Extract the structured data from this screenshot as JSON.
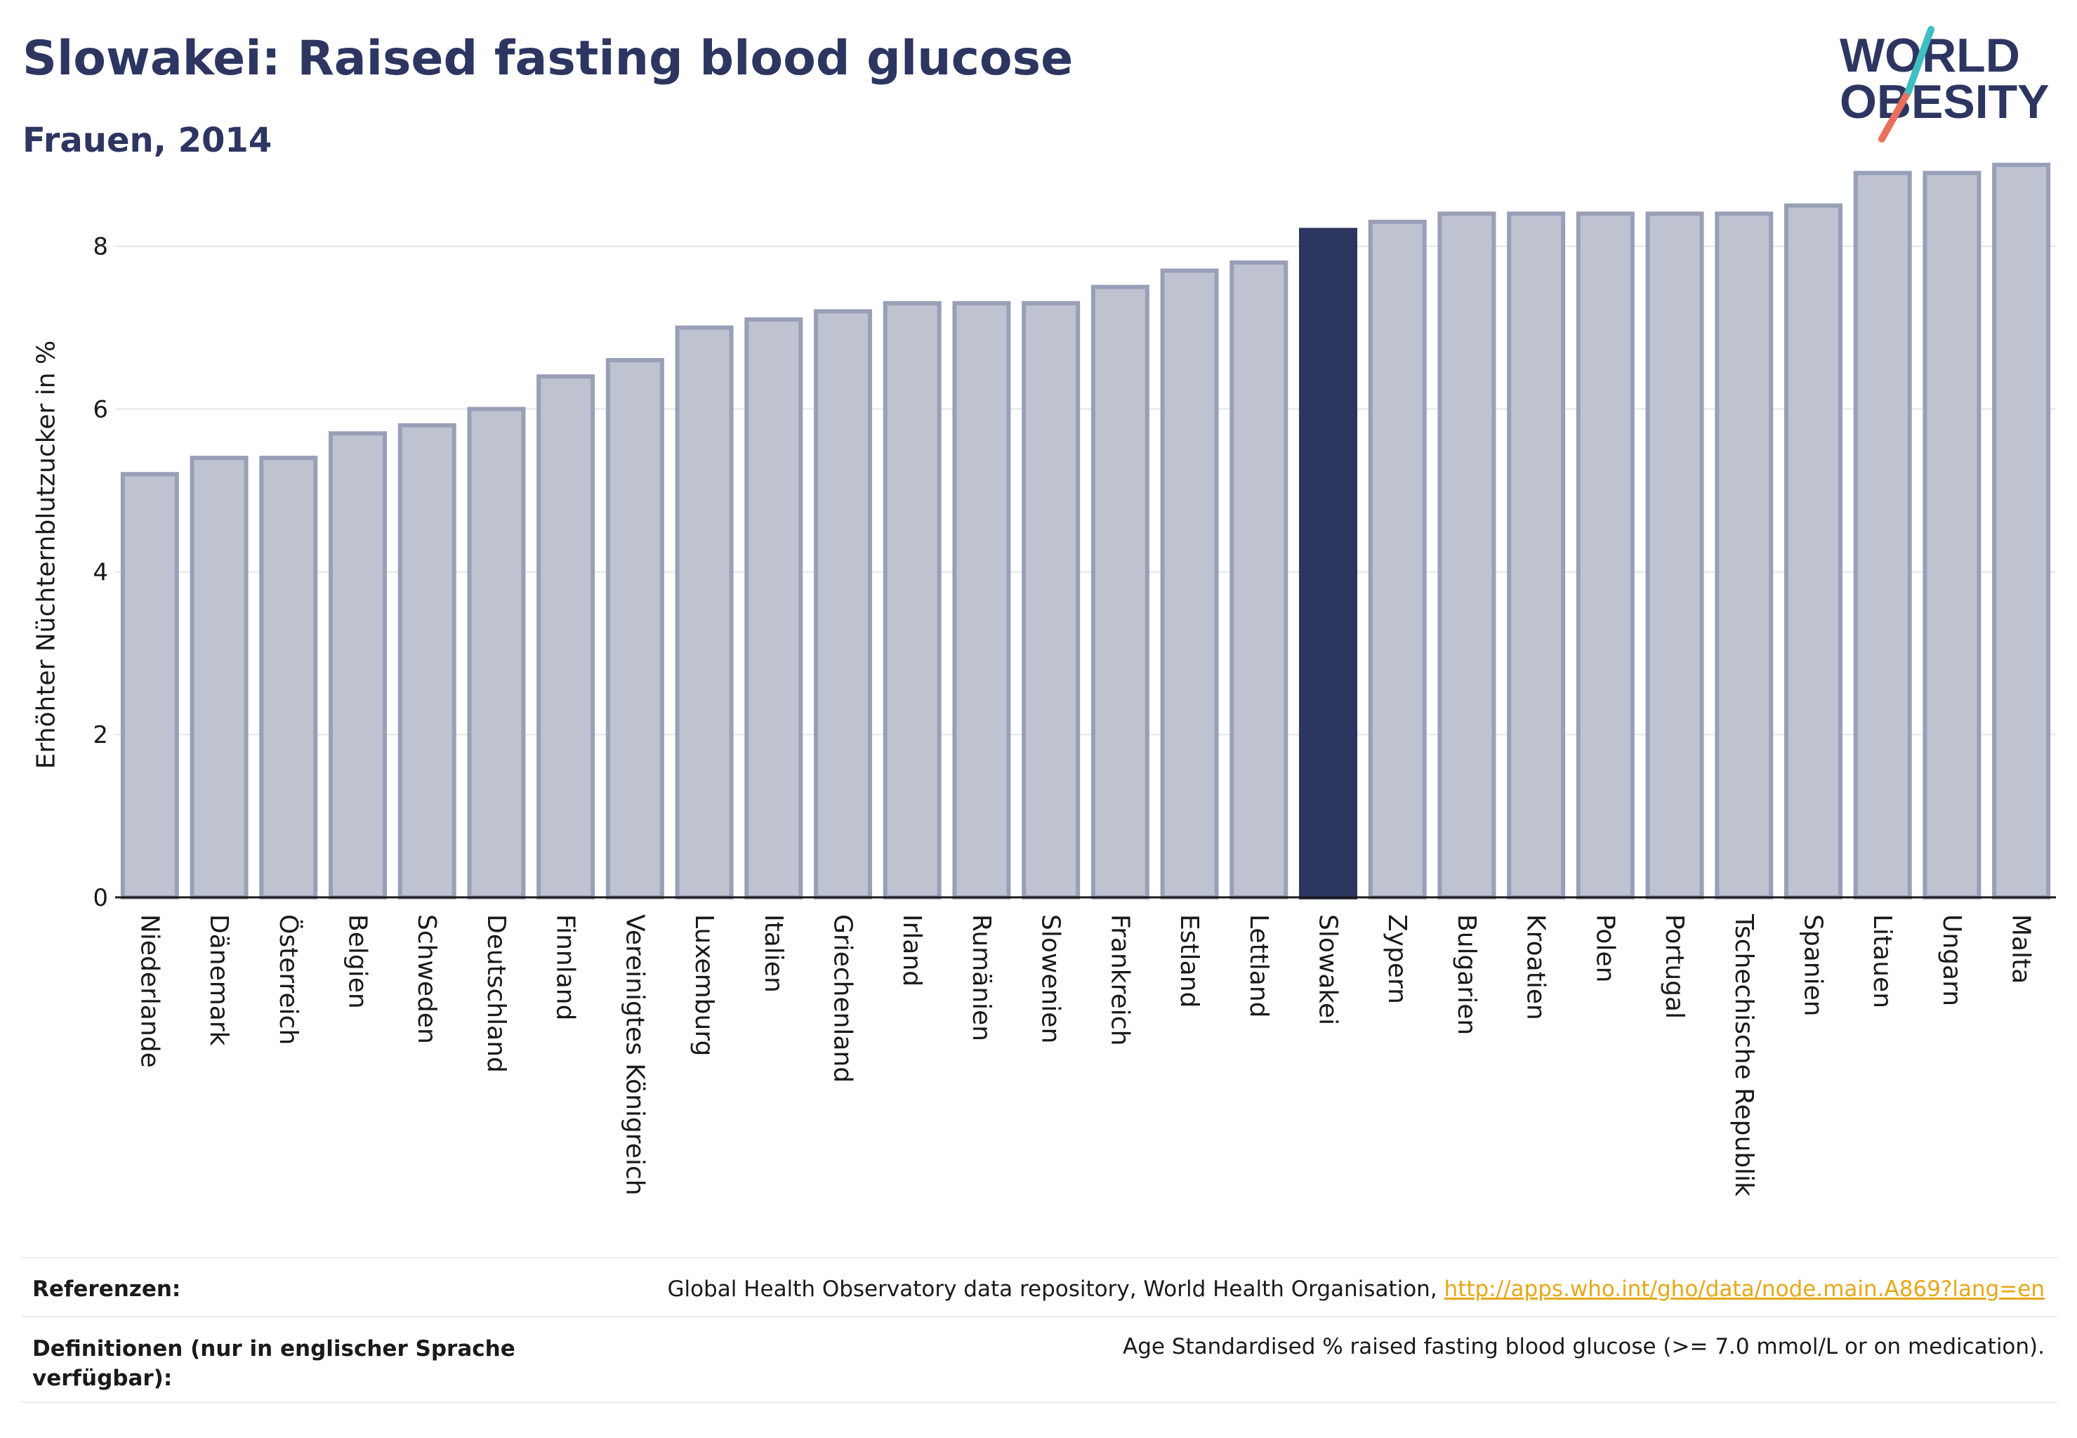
{
  "title": "Slowakei: Raised fasting blood glucose",
  "subtitle": "Frauen, 2014",
  "logo": {
    "line1": "WORLD",
    "line2": "OBESITY"
  },
  "chart_data": {
    "type": "bar",
    "ylabel": "Erhöhter Nüchternblutzucker in %",
    "xlabel": "",
    "ylim": [
      0,
      9.3
    ],
    "yticks": [
      0,
      2,
      4,
      6,
      8
    ],
    "grid": true,
    "highlight": "Slowakei",
    "colors": {
      "bar": "#bfc2cf",
      "bar_edge": "#9a9fb8",
      "highlight": "#2d3561"
    },
    "categories": [
      "Niederlande",
      "Dänemark",
      "Österreich",
      "Belgien",
      "Schweden",
      "Deutschland",
      "Finnland",
      "Vereinigtes Königreich",
      "Luxemburg",
      "Italien",
      "Griechenland",
      "Irland",
      "Rumänien",
      "Slowenien",
      "Frankreich",
      "Estland",
      "Lettland",
      "Slowakei",
      "Zypern",
      "Bulgarien",
      "Kroatien",
      "Polen",
      "Portugal",
      "Tschechische Republik",
      "Spanien",
      "Litauen",
      "Ungarn",
      "Malta"
    ],
    "values": [
      5.2,
      5.4,
      5.4,
      5.7,
      5.8,
      6.0,
      6.4,
      6.6,
      7.0,
      7.1,
      7.2,
      7.3,
      7.3,
      7.3,
      7.5,
      7.7,
      7.8,
      8.2,
      8.3,
      8.4,
      8.4,
      8.4,
      8.4,
      8.4,
      8.5,
      8.9,
      8.9,
      9.0
    ]
  },
  "footer": {
    "references_label": "Referenzen:",
    "references_text": "Global Health Observatory data repository, World Health Organisation, ",
    "references_link": "http://apps.who.int/gho/data/node.main.A869?lang=en",
    "definitions_label": "Definitionen (nur in englischer Sprache verfügbar):",
    "definitions_text": "Age Standardised % raised fasting blood glucose (>= 7.0 mmol/L or on medication)."
  }
}
